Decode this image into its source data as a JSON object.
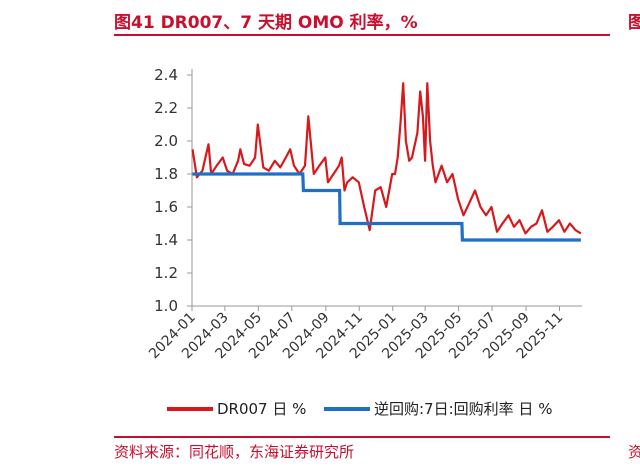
{
  "header": {
    "title": "图41  DR007、7 天期 OMO 利率，%",
    "source": "资料来源：同花顺，东海证券研究所",
    "edge_glyph_top": "图",
    "edge_glyph_bottom": "资"
  },
  "chart_data": {
    "type": "line",
    "ylim": [
      1.0,
      2.4
    ],
    "yticks": [
      "1.0",
      "1.2",
      "1.4",
      "1.6",
      "1.8",
      "2.0",
      "2.2",
      "2.4"
    ],
    "xticks": [
      "2024-01",
      "2024-03",
      "2024-05",
      "2024-07",
      "2024-09",
      "2024-11",
      "2025-01",
      "2025-03",
      "2025-05",
      "2025-07",
      "2025-09",
      "2025-11"
    ],
    "legend_position": "bottom",
    "series": [
      {
        "name": "DR007 日 %",
        "color": "#d7191c",
        "x": [
          "2024-01-02",
          "2024-01-10",
          "2024-01-20",
          "2024-01-31",
          "2024-02-05",
          "2024-02-15",
          "2024-02-26",
          "2024-03-05",
          "2024-03-15",
          "2024-03-25",
          "2024-03-29",
          "2024-04-05",
          "2024-04-15",
          "2024-04-25",
          "2024-04-30",
          "2024-05-10",
          "2024-05-20",
          "2024-05-31",
          "2024-06-10",
          "2024-06-20",
          "2024-06-28",
          "2024-07-05",
          "2024-07-15",
          "2024-07-25",
          "2024-07-31",
          "2024-08-10",
          "2024-08-20",
          "2024-08-31",
          "2024-09-05",
          "2024-09-15",
          "2024-09-25",
          "2024-09-30",
          "2024-10-05",
          "2024-10-10",
          "2024-10-20",
          "2024-10-31",
          "2024-11-10",
          "2024-11-20",
          "2024-11-30",
          "2024-12-10",
          "2024-12-20",
          "2024-12-31",
          "2025-01-05",
          "2025-01-10",
          "2025-01-15",
          "2025-01-20",
          "2025-01-25",
          "2025-01-31",
          "2025-02-05",
          "2025-02-15",
          "2025-02-20",
          "2025-02-25",
          "2025-03-01",
          "2025-03-05",
          "2025-03-10",
          "2025-03-15",
          "2025-03-20",
          "2025-03-31",
          "2025-04-10",
          "2025-04-20",
          "2025-04-30",
          "2025-05-10",
          "2025-05-20",
          "2025-05-31",
          "2025-06-10",
          "2025-06-20",
          "2025-06-30",
          "2025-07-10",
          "2025-07-20",
          "2025-07-31",
          "2025-08-10",
          "2025-08-20",
          "2025-08-31",
          "2025-09-10",
          "2025-09-20",
          "2025-09-30",
          "2025-10-10",
          "2025-10-20",
          "2025-10-31",
          "2025-11-10",
          "2025-11-20",
          "2025-11-30",
          "2025-12-10"
        ],
        "values": [
          1.95,
          1.78,
          1.82,
          1.98,
          1.8,
          1.85,
          1.9,
          1.82,
          1.8,
          1.88,
          1.95,
          1.86,
          1.85,
          1.9,
          2.1,
          1.84,
          1.82,
          1.88,
          1.84,
          1.9,
          1.95,
          1.85,
          1.8,
          1.85,
          2.15,
          1.8,
          1.85,
          1.9,
          1.75,
          1.8,
          1.85,
          1.9,
          1.7,
          1.75,
          1.78,
          1.75,
          1.6,
          1.46,
          1.7,
          1.72,
          1.6,
          1.8,
          1.8,
          1.9,
          2.1,
          2.35,
          2.0,
          1.88,
          1.9,
          2.05,
          2.3,
          2.15,
          1.88,
          2.35,
          2.0,
          1.85,
          1.75,
          1.85,
          1.75,
          1.8,
          1.65,
          1.55,
          1.62,
          1.7,
          1.6,
          1.55,
          1.6,
          1.45,
          1.5,
          1.55,
          1.48,
          1.52,
          1.44,
          1.48,
          1.5,
          1.58,
          1.45,
          1.48,
          1.52,
          1.45,
          1.5,
          1.46,
          1.44
        ]
      },
      {
        "name": "逆回购:7日:回购利率 日 %",
        "color": "#1f6fc5",
        "x": [
          "2024-01-02",
          "2024-07-21",
          "2024-07-22",
          "2024-09-26",
          "2024-09-27",
          "2025-05-07",
          "2025-05-08",
          "2025-12-10"
        ],
        "values": [
          1.8,
          1.8,
          1.7,
          1.7,
          1.5,
          1.5,
          1.4,
          1.4
        ]
      }
    ]
  }
}
